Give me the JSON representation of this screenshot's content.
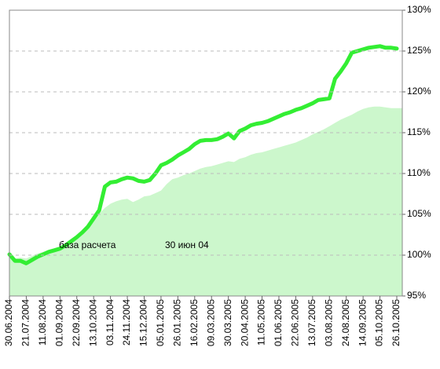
{
  "chart_data": {
    "type": "line",
    "categories": [
      "30.06.2004",
      null,
      null,
      "21.07.2004",
      null,
      null,
      "11.08.2004",
      null,
      null,
      "01.09.2004",
      null,
      null,
      "22.09.2004",
      null,
      null,
      "13.10.2004",
      null,
      null,
      "03.11.2004",
      null,
      null,
      "24.11.2004",
      null,
      null,
      "15.12.2004",
      null,
      null,
      "05.01.2005",
      null,
      null,
      "26.01.2005",
      null,
      null,
      "16.02.2005",
      null,
      null,
      "09.03.2005",
      null,
      null,
      "30.03.2005",
      null,
      null,
      "20.04.2005",
      null,
      null,
      "11.05.2005",
      null,
      null,
      "01.06.2005",
      null,
      null,
      "22.06.2005",
      null,
      null,
      "13.07.2005",
      null,
      null,
      "03.08.2005",
      null,
      null,
      "24.08.2005",
      null,
      null,
      "14.09.2005",
      null,
      null,
      "05.10.2005",
      null,
      null,
      "26.10.2005"
    ],
    "series": [
      {
        "type": "area",
        "color": "#ccf7cc",
        "values": [
          100.0,
          99.6,
          99.7,
          99.6,
          99.9,
          100.2,
          100.4,
          100.6,
          100.8,
          101.0,
          101.4,
          101.9,
          102.4,
          102.9,
          103.6,
          104.3,
          105.1,
          105.8,
          106.3,
          106.6,
          106.8,
          106.9,
          106.5,
          106.8,
          107.2,
          107.3,
          107.6,
          107.9,
          108.7,
          109.3,
          109.5,
          109.8,
          110.0,
          110.3,
          110.6,
          110.8,
          110.9,
          111.1,
          111.3,
          111.5,
          111.4,
          111.8,
          112.0,
          112.3,
          112.5,
          112.6,
          112.8,
          113.0,
          113.2,
          113.4,
          113.6,
          113.8,
          114.1,
          114.4,
          114.8,
          115.1,
          115.4,
          115.8,
          116.2,
          116.6,
          116.9,
          117.2,
          117.6,
          117.9,
          118.1,
          118.2,
          118.2,
          118.1,
          118.0,
          118.0
        ]
      },
      {
        "type": "line",
        "color": "#33ee33",
        "values": [
          100.1,
          99.3,
          99.3,
          99.0,
          99.4,
          99.8,
          100.1,
          100.4,
          100.6,
          100.8,
          101.2,
          101.7,
          102.2,
          102.8,
          103.5,
          104.5,
          105.5,
          108.4,
          108.9,
          109.0,
          109.3,
          109.5,
          109.4,
          109.1,
          109.0,
          109.2,
          110.0,
          111.0,
          111.3,
          111.7,
          112.2,
          112.6,
          113.0,
          113.6,
          114.0,
          114.1,
          114.1,
          114.2,
          114.5,
          114.9,
          114.3,
          115.2,
          115.5,
          115.9,
          116.1,
          116.2,
          116.4,
          116.7,
          117.0,
          117.3,
          117.5,
          117.8,
          118.0,
          118.3,
          118.6,
          119.0,
          119.1,
          119.2,
          121.6,
          122.5,
          123.5,
          124.8,
          125.0,
          125.2,
          125.4,
          125.5,
          125.6,
          125.4,
          125.4,
          125.3
        ]
      }
    ],
    "ylim": [
      95,
      130
    ],
    "yticks": [
      {
        "value": 95,
        "label": "95%"
      },
      {
        "value": 100,
        "label": "100%"
      },
      {
        "value": 105,
        "label": "105%"
      },
      {
        "value": 110,
        "label": "110%"
      },
      {
        "value": 115,
        "label": "115%"
      },
      {
        "value": 120,
        "label": "120%"
      },
      {
        "value": 125,
        "label": "125%"
      },
      {
        "value": 130,
        "label": "130%"
      }
    ],
    "grid": true,
    "annotations": [
      "база расчета",
      "30 июн 04"
    ]
  }
}
